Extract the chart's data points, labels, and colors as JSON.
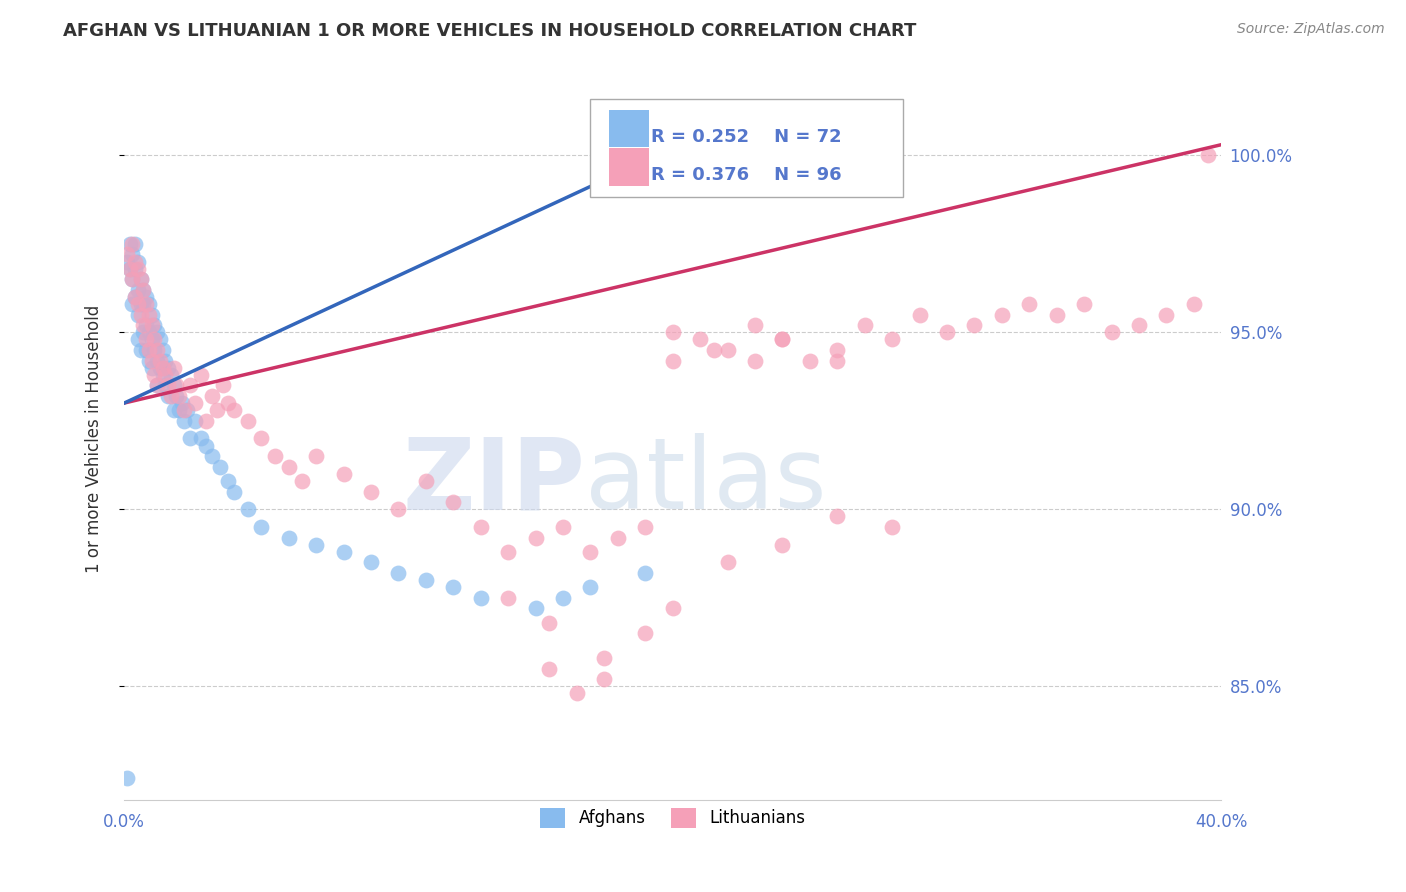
{
  "title": "AFGHAN VS LITHUANIAN 1 OR MORE VEHICLES IN HOUSEHOLD CORRELATION CHART",
  "source": "Source: ZipAtlas.com",
  "ylabel": "1 or more Vehicles in Household",
  "xlim": [
    0.0,
    0.4
  ],
  "ylim": [
    0.818,
    1.022
  ],
  "xticks": [
    0.0,
    0.05,
    0.1,
    0.15,
    0.2,
    0.25,
    0.3,
    0.35,
    0.4
  ],
  "xticklabels": [
    "0.0%",
    "",
    "",
    "",
    "",
    "",
    "",
    "",
    "40.0%"
  ],
  "yticks": [
    0.85,
    0.9,
    0.95,
    1.0
  ],
  "yticklabels": [
    "85.0%",
    "90.0%",
    "95.0%",
    "100.0%"
  ],
  "afghan_color": "#88bbee",
  "lithuanian_color": "#f5a0b8",
  "afghan_line_color": "#3366bb",
  "lithuanian_line_color": "#cc3366",
  "R_afghan": 0.252,
  "N_afghan": 72,
  "R_lithuanian": 0.376,
  "N_lithuanian": 96,
  "watermark_zip": "ZIP",
  "watermark_atlas": "atlas",
  "axis_label_color": "#5577cc",
  "text_color": "#333333",
  "grid_color": "#cccccc",
  "afghan_x": [
    0.001,
    0.002,
    0.002,
    0.003,
    0.003,
    0.003,
    0.004,
    0.004,
    0.004,
    0.005,
    0.005,
    0.005,
    0.005,
    0.006,
    0.006,
    0.006,
    0.007,
    0.007,
    0.007,
    0.008,
    0.008,
    0.008,
    0.009,
    0.009,
    0.009,
    0.01,
    0.01,
    0.01,
    0.011,
    0.011,
    0.012,
    0.012,
    0.012,
    0.013,
    0.013,
    0.014,
    0.014,
    0.015,
    0.015,
    0.016,
    0.016,
    0.017,
    0.018,
    0.018,
    0.019,
    0.02,
    0.021,
    0.022,
    0.023,
    0.024,
    0.026,
    0.028,
    0.03,
    0.032,
    0.035,
    0.038,
    0.04,
    0.045,
    0.05,
    0.06,
    0.07,
    0.08,
    0.09,
    0.1,
    0.11,
    0.12,
    0.13,
    0.15,
    0.16,
    0.17,
    0.19,
    0.001
  ],
  "afghan_y": [
    0.97,
    0.968,
    0.975,
    0.972,
    0.965,
    0.958,
    0.975,
    0.968,
    0.96,
    0.97,
    0.962,
    0.955,
    0.948,
    0.965,
    0.958,
    0.945,
    0.962,
    0.958,
    0.95,
    0.96,
    0.952,
    0.945,
    0.958,
    0.95,
    0.942,
    0.955,
    0.948,
    0.94,
    0.952,
    0.945,
    0.95,
    0.942,
    0.935,
    0.948,
    0.94,
    0.945,
    0.938,
    0.942,
    0.935,
    0.94,
    0.932,
    0.938,
    0.935,
    0.928,
    0.932,
    0.928,
    0.93,
    0.925,
    0.928,
    0.92,
    0.925,
    0.92,
    0.918,
    0.915,
    0.912,
    0.908,
    0.905,
    0.9,
    0.895,
    0.892,
    0.89,
    0.888,
    0.885,
    0.882,
    0.88,
    0.878,
    0.875,
    0.872,
    0.875,
    0.878,
    0.882,
    0.824
  ],
  "lithuanian_x": [
    0.001,
    0.002,
    0.003,
    0.003,
    0.004,
    0.004,
    0.005,
    0.005,
    0.006,
    0.006,
    0.007,
    0.007,
    0.008,
    0.008,
    0.009,
    0.009,
    0.01,
    0.01,
    0.011,
    0.011,
    0.012,
    0.012,
    0.013,
    0.014,
    0.015,
    0.016,
    0.017,
    0.018,
    0.019,
    0.02,
    0.022,
    0.024,
    0.026,
    0.028,
    0.03,
    0.032,
    0.034,
    0.036,
    0.038,
    0.04,
    0.045,
    0.05,
    0.055,
    0.06,
    0.065,
    0.07,
    0.08,
    0.09,
    0.1,
    0.11,
    0.12,
    0.13,
    0.14,
    0.15,
    0.16,
    0.17,
    0.18,
    0.19,
    0.2,
    0.21,
    0.22,
    0.23,
    0.24,
    0.25,
    0.26,
    0.27,
    0.28,
    0.29,
    0.3,
    0.31,
    0.32,
    0.33,
    0.34,
    0.35,
    0.36,
    0.37,
    0.38,
    0.39,
    0.395,
    0.2,
    0.215,
    0.23,
    0.155,
    0.165,
    0.175,
    0.24,
    0.26,
    0.28,
    0.14,
    0.155,
    0.175,
    0.19,
    0.2,
    0.22,
    0.24,
    0.26
  ],
  "lithuanian_y": [
    0.972,
    0.968,
    0.975,
    0.965,
    0.97,
    0.96,
    0.968,
    0.958,
    0.965,
    0.955,
    0.962,
    0.952,
    0.958,
    0.948,
    0.955,
    0.945,
    0.952,
    0.942,
    0.948,
    0.938,
    0.945,
    0.935,
    0.942,
    0.94,
    0.938,
    0.935,
    0.932,
    0.94,
    0.935,
    0.932,
    0.928,
    0.935,
    0.93,
    0.938,
    0.925,
    0.932,
    0.928,
    0.935,
    0.93,
    0.928,
    0.925,
    0.92,
    0.915,
    0.912,
    0.908,
    0.915,
    0.91,
    0.905,
    0.9,
    0.908,
    0.902,
    0.895,
    0.888,
    0.892,
    0.895,
    0.888,
    0.892,
    0.895,
    0.942,
    0.948,
    0.945,
    0.952,
    0.948,
    0.942,
    0.945,
    0.952,
    0.948,
    0.955,
    0.95,
    0.952,
    0.955,
    0.958,
    0.955,
    0.958,
    0.95,
    0.952,
    0.955,
    0.958,
    1.0,
    0.95,
    0.945,
    0.942,
    0.855,
    0.848,
    0.852,
    0.948,
    0.942,
    0.895,
    0.875,
    0.868,
    0.858,
    0.865,
    0.872,
    0.885,
    0.89,
    0.898
  ]
}
